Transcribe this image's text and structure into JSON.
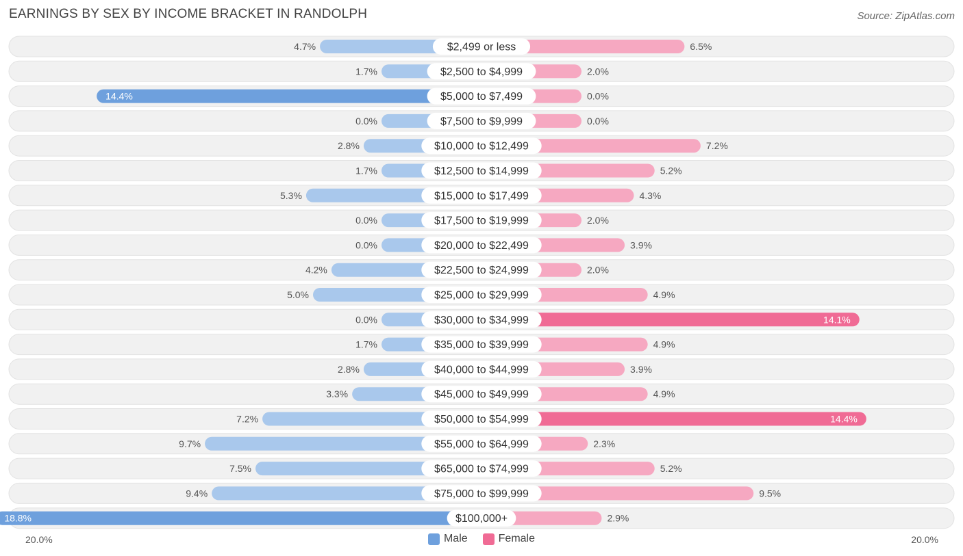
{
  "header": {
    "title": "EARNINGS BY SEX BY INCOME BRACKET IN RANDOLPH",
    "source": "Source: ZipAtlas.com"
  },
  "colors": {
    "male_light": "#a9c8ec",
    "male_dark": "#6ea0dd",
    "female_light": "#f6a8c1",
    "female_dark": "#f06b95",
    "row_bg": "#f1f1f1"
  },
  "chart_data": {
    "type": "bar",
    "orientation": "horizontal-diverging",
    "title": "EARNINGS BY SEX BY INCOME BRACKET IN RANDOLPH",
    "xlim": [
      -20,
      20
    ],
    "axis_left_label": "20.0%",
    "axis_right_label": "20.0%",
    "categories": [
      "$2,499 or less",
      "$2,500 to $4,999",
      "$5,000 to $7,499",
      "$7,500 to $9,999",
      "$10,000 to $12,499",
      "$12,500 to $14,999",
      "$15,000 to $17,499",
      "$17,500 to $19,999",
      "$20,000 to $22,499",
      "$22,500 to $24,999",
      "$25,000 to $29,999",
      "$30,000 to $34,999",
      "$35,000 to $39,999",
      "$40,000 to $44,999",
      "$45,000 to $49,999",
      "$50,000 to $54,999",
      "$55,000 to $64,999",
      "$65,000 to $74,999",
      "$75,000 to $99,999",
      "$100,000+"
    ],
    "series": [
      {
        "name": "Male",
        "values": [
          4.7,
          1.7,
          14.4,
          0.0,
          2.8,
          1.7,
          5.3,
          0.0,
          0.0,
          4.2,
          5.0,
          0.0,
          1.7,
          2.8,
          3.3,
          7.2,
          9.7,
          7.5,
          9.4,
          18.8
        ],
        "labels": [
          "4.7%",
          "1.7%",
          "14.4%",
          "0.0%",
          "2.8%",
          "1.7%",
          "5.3%",
          "0.0%",
          "0.0%",
          "4.2%",
          "5.0%",
          "0.0%",
          "1.7%",
          "2.8%",
          "3.3%",
          "7.2%",
          "9.7%",
          "7.5%",
          "9.4%",
          "18.8%"
        ]
      },
      {
        "name": "Female",
        "values": [
          6.5,
          2.0,
          0.0,
          0.0,
          7.2,
          5.2,
          4.3,
          2.0,
          3.9,
          2.0,
          4.9,
          14.1,
          4.9,
          3.9,
          4.9,
          14.4,
          2.3,
          5.2,
          9.5,
          2.9
        ],
        "labels": [
          "6.5%",
          "2.0%",
          "0.0%",
          "0.0%",
          "7.2%",
          "5.2%",
          "4.3%",
          "2.0%",
          "3.9%",
          "2.0%",
          "4.9%",
          "14.1%",
          "4.9%",
          "3.9%",
          "4.9%",
          "14.4%",
          "2.3%",
          "5.2%",
          "9.5%",
          "2.9%"
        ]
      }
    ],
    "legend": [
      "Male",
      "Female"
    ]
  }
}
